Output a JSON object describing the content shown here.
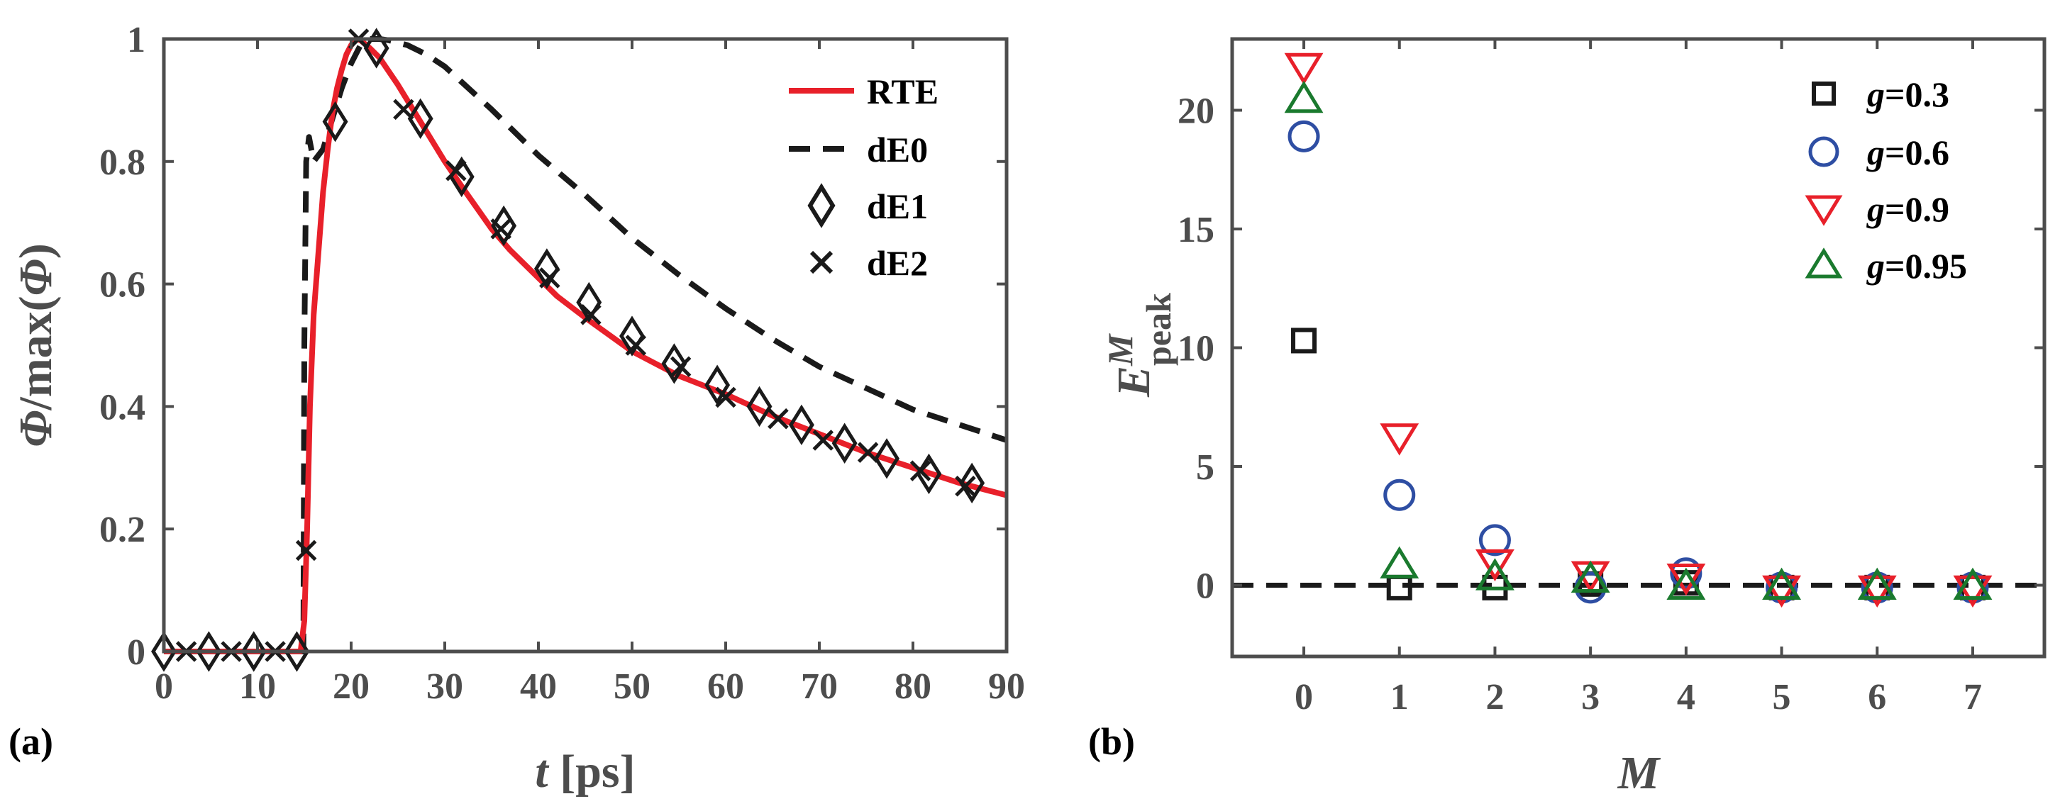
{
  "chart_data": [
    {
      "panel": "(a)",
      "type": "line",
      "xlabel_italic": "t",
      "xlabel_rest": " [ps]",
      "ylabel_phi1": "Φ",
      "ylabel_mid": "/max(",
      "ylabel_phi2": "Φ",
      "ylabel_end": ")",
      "xlim": [
        0,
        90
      ],
      "ylim": [
        0,
        1
      ],
      "xticks": [
        0,
        10,
        20,
        30,
        40,
        50,
        60,
        70,
        80,
        90
      ],
      "yticks": [
        0,
        0.2,
        0.4,
        0.6,
        0.8,
        1
      ],
      "ytick_labels": [
        "0",
        "0.2",
        "0.4",
        "0.6",
        "0.8",
        "1"
      ],
      "legend_position": "top-right",
      "series": [
        {
          "name": "RTE",
          "style": "solid",
          "color": "#e8202a",
          "x": [
            0,
            14.6,
            15.0,
            15.3,
            15.6,
            16.0,
            16.5,
            17.0,
            17.5,
            18.0,
            18.5,
            19.0,
            19.5,
            20.0,
            20.5,
            21.0,
            22.0,
            23.0,
            25.0,
            27.0,
            30.0,
            32.0,
            35.0,
            37.0,
            40.0,
            42.0,
            45.0,
            50.0,
            55.0,
            60.0,
            65.0,
            70.0,
            75.0,
            80.0,
            85.0,
            90.0
          ],
          "y": [
            0,
            0,
            0.05,
            0.2,
            0.4,
            0.55,
            0.65,
            0.75,
            0.82,
            0.88,
            0.92,
            0.95,
            0.975,
            0.99,
            1.0,
            0.998,
            0.985,
            0.97,
            0.925,
            0.875,
            0.8,
            0.755,
            0.69,
            0.655,
            0.61,
            0.58,
            0.545,
            0.49,
            0.45,
            0.42,
            0.385,
            0.355,
            0.325,
            0.3,
            0.275,
            0.255
          ]
        },
        {
          "name": "dE0",
          "style": "dashed",
          "color": "#1a1a1a",
          "x": [
            0,
            14.9,
            15.0,
            15.2,
            15.5,
            16.0,
            17.0,
            18.0,
            19.0,
            20.0,
            21.0,
            22.0,
            23.0,
            24.0,
            26.0,
            28.0,
            30.0,
            35.0,
            40.0,
            45.0,
            50.0,
            55.0,
            60.0,
            65.0,
            70.0,
            75.0,
            80.0,
            85.0,
            90.0
          ],
          "y": [
            0,
            0,
            0.5,
            0.8,
            0.84,
            0.8,
            0.82,
            0.87,
            0.92,
            0.96,
            0.99,
            1.0,
            1.0,
            0.998,
            0.99,
            0.975,
            0.955,
            0.885,
            0.81,
            0.745,
            0.675,
            0.615,
            0.56,
            0.51,
            0.465,
            0.43,
            0.395,
            0.37,
            0.345
          ]
        },
        {
          "name": "dE1",
          "marker": "diamond",
          "color": "#1a1a1a",
          "x": [
            0,
            4.8,
            9.6,
            14.2,
            18.3,
            22.7,
            27.4,
            31.8,
            36.3,
            40.9,
            45.4,
            50.0,
            54.5,
            59.1,
            63.6,
            68.1,
            72.7,
            77.2,
            81.7,
            86.3
          ],
          "y": [
            0,
            0,
            0,
            0,
            0.865,
            0.985,
            0.87,
            0.775,
            0.695,
            0.625,
            0.57,
            0.515,
            0.47,
            0.435,
            0.4,
            0.37,
            0.34,
            0.315,
            0.29,
            0.275
          ]
        },
        {
          "name": "dE2",
          "marker": "x",
          "color": "#1a1a1a",
          "x": [
            2.4,
            7.2,
            11.9,
            15.2,
            20.8,
            25.6,
            31.2,
            36.0,
            41.2,
            45.6,
            50.4,
            55.2,
            60.0,
            65.6,
            70.4,
            75.2,
            80.8,
            85.6
          ],
          "y": [
            0,
            0,
            0,
            0.165,
            1.0,
            0.885,
            0.785,
            0.69,
            0.61,
            0.55,
            0.5,
            0.465,
            0.415,
            0.38,
            0.345,
            0.325,
            0.295,
            0.27
          ]
        }
      ]
    },
    {
      "panel": "(b)",
      "type": "scatter",
      "xlabel_italic": "M",
      "ylabel_italic": "E",
      "ylabel_sub": "peak",
      "ylabel_sup": "M",
      "xlim": [
        -0.75,
        7.75
      ],
      "ylim": [
        -3,
        23
      ],
      "xticks": [
        0,
        1,
        2,
        3,
        4,
        5,
        6,
        7
      ],
      "yticks": [
        0,
        5,
        10,
        15,
        20
      ],
      "ytick_labels": [
        "0",
        "5",
        "10",
        "15",
        "20"
      ],
      "reference_line_y": 0,
      "legend_position": "top-right",
      "legend_prefix": "g",
      "series": [
        {
          "name": "=0.3",
          "marker": "square",
          "color": "#1a1a1a",
          "x": [
            0,
            1,
            2,
            3,
            4,
            5,
            6,
            7
          ],
          "y": [
            10.3,
            -0.1,
            -0.1,
            0.05,
            0.1,
            -0.1,
            -0.1,
            -0.1
          ]
        },
        {
          "name": "=0.6",
          "marker": "circle",
          "color": "#2e4ea3",
          "x": [
            0,
            1,
            2,
            3,
            4,
            5,
            6,
            7
          ],
          "y": [
            18.9,
            3.8,
            1.9,
            -0.1,
            0.5,
            -0.1,
            -0.1,
            -0.1
          ]
        },
        {
          "name": "=0.9",
          "marker": "triangle-down",
          "color": "#e8202a",
          "x": [
            0,
            1,
            2,
            3,
            4,
            5,
            6,
            7
          ],
          "y": [
            21.8,
            6.2,
            0.9,
            0.4,
            0.3,
            -0.2,
            -0.2,
            -0.2
          ]
        },
        {
          "name": "=0.95",
          "marker": "triangle-up",
          "color": "#1a7a2e",
          "x": [
            0,
            1,
            2,
            3,
            4,
            5,
            6,
            7
          ],
          "y": [
            20.5,
            0.9,
            0.4,
            0.3,
            0.0,
            0.0,
            0.0,
            0.0
          ]
        }
      ]
    }
  ]
}
